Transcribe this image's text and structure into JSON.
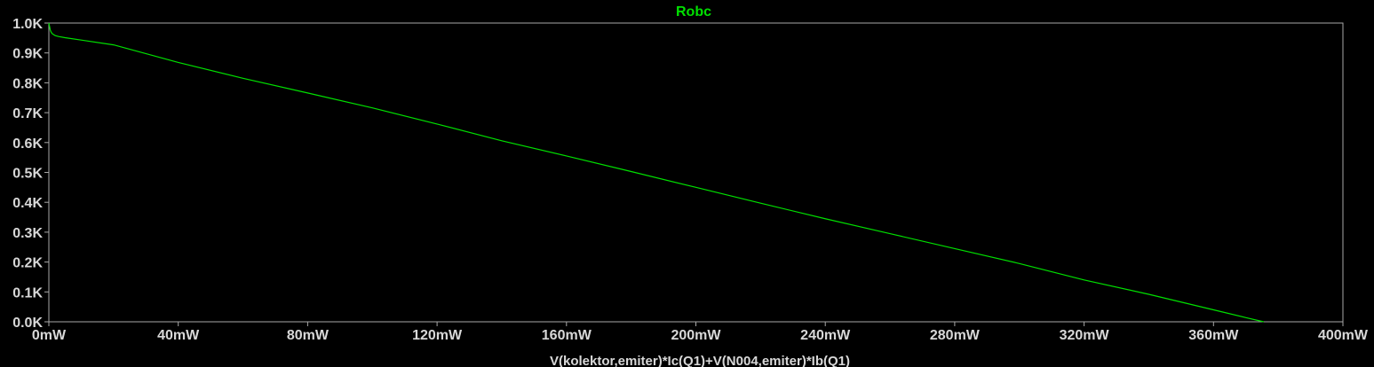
{
  "chart_data": {
    "type": "line",
    "title": "Robc",
    "xlabel": "V(kolektor,emiter)*Ic(Q1)+V(N004,emiter)*Ib(Q1)",
    "ylabel": "",
    "xlim": [
      0,
      400
    ],
    "ylim": [
      0,
      1000
    ],
    "x_ticks": [
      0,
      40,
      80,
      120,
      160,
      200,
      240,
      280,
      320,
      360,
      400
    ],
    "x_tick_labels": [
      "0mW",
      "40mW",
      "80mW",
      "120mW",
      "160mW",
      "200mW",
      "240mW",
      "280mW",
      "320mW",
      "360mW",
      "400mW"
    ],
    "y_ticks": [
      0,
      100,
      200,
      300,
      400,
      500,
      600,
      700,
      800,
      900,
      1000
    ],
    "y_tick_labels": [
      "0.0K",
      "0.1K",
      "0.2K",
      "0.3K",
      "0.4K",
      "0.5K",
      "0.6K",
      "0.7K",
      "0.8K",
      "0.9K",
      "1.0K"
    ],
    "grid": false,
    "series": [
      {
        "name": "Robc",
        "color": "#00e000",
        "x": [
          0.0,
          0.1,
          0.2,
          0.3,
          0.4,
          0.6,
          0.8,
          1.0,
          1.5,
          2.0,
          3.0,
          5.0,
          10,
          20,
          40,
          60,
          80,
          100,
          120,
          140,
          160,
          180,
          200,
          220,
          240,
          260,
          280,
          300,
          320,
          340,
          360,
          370,
          375.5
        ],
        "y": [
          1000,
          995,
          990,
          984,
          978,
          972,
          968,
          965,
          961,
          958,
          955,
          951,
          943,
          927,
          868,
          815,
          766,
          716,
          662,
          606,
          555,
          503,
          450,
          397,
          345,
          295,
          245,
          195,
          140,
          92,
          40,
          14,
          0
        ]
      }
    ]
  }
}
